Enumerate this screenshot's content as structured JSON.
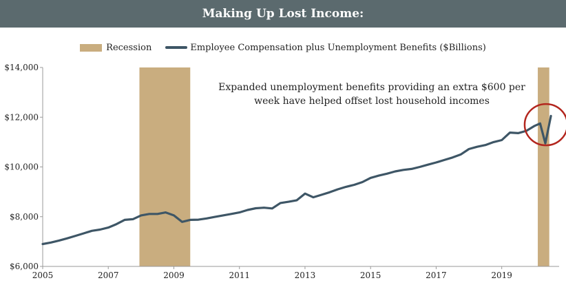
{
  "header": {
    "title": "Making Up Lost Income:"
  },
  "chart_data": {
    "type": "line",
    "title": "Making Up Lost Income:",
    "legend_position": "top-center",
    "legend": [
      {
        "label": "Recession",
        "kind": "area",
        "color": "#c9ad7f"
      },
      {
        "label": "Employee Compensation plus Unemployment Benefits ($Billions)",
        "kind": "line",
        "color": "#3e5666"
      }
    ],
    "xlim": [
      2005,
      2020.75
    ],
    "ylim": [
      6000,
      14000
    ],
    "x_ticks": [
      "2005",
      "2007",
      "2009",
      "2011",
      "2013",
      "2015",
      "2017",
      "2019"
    ],
    "x_tick_values": [
      2005,
      2007,
      2009,
      2011,
      2013,
      2015,
      2017,
      2019
    ],
    "y_ticks": [
      "$6,000",
      "$8,000",
      "$10,000",
      "$12,000",
      "$14,000"
    ],
    "y_tick_values": [
      6000,
      8000,
      10000,
      12000,
      14000
    ],
    "recessions": [
      {
        "start": 2007.95,
        "end": 2009.5
      },
      {
        "start": 2020.1,
        "end": 2020.45
      }
    ],
    "annotation": {
      "lines": [
        "Expanded unemployment benefits providing an extra $600 per",
        "week have helped offset lost household incomes"
      ],
      "circle_center": [
        2020.35,
        11700
      ]
    },
    "series": [
      {
        "name": "Employee Compensation plus Unemployment Benefits ($Billions)",
        "color": "#3e5666",
        "points": [
          [
            2005.0,
            6900
          ],
          [
            2005.25,
            6960
          ],
          [
            2005.5,
            7040
          ],
          [
            2005.75,
            7130
          ],
          [
            2006.0,
            7230
          ],
          [
            2006.25,
            7330
          ],
          [
            2006.5,
            7430
          ],
          [
            2006.75,
            7480
          ],
          [
            2007.0,
            7560
          ],
          [
            2007.25,
            7700
          ],
          [
            2007.5,
            7870
          ],
          [
            2007.75,
            7900
          ],
          [
            2008.0,
            8050
          ],
          [
            2008.25,
            8110
          ],
          [
            2008.5,
            8110
          ],
          [
            2008.75,
            8170
          ],
          [
            2009.0,
            8050
          ],
          [
            2009.25,
            7790
          ],
          [
            2009.5,
            7870
          ],
          [
            2009.75,
            7880
          ],
          [
            2010.0,
            7930
          ],
          [
            2010.25,
            7990
          ],
          [
            2010.5,
            8050
          ],
          [
            2010.75,
            8110
          ],
          [
            2011.0,
            8170
          ],
          [
            2011.25,
            8270
          ],
          [
            2011.5,
            8340
          ],
          [
            2011.75,
            8360
          ],
          [
            2012.0,
            8330
          ],
          [
            2012.25,
            8550
          ],
          [
            2012.5,
            8600
          ],
          [
            2012.75,
            8660
          ],
          [
            2013.0,
            8930
          ],
          [
            2013.25,
            8780
          ],
          [
            2013.5,
            8880
          ],
          [
            2013.75,
            8980
          ],
          [
            2014.0,
            9100
          ],
          [
            2014.25,
            9200
          ],
          [
            2014.5,
            9280
          ],
          [
            2014.75,
            9390
          ],
          [
            2015.0,
            9560
          ],
          [
            2015.25,
            9650
          ],
          [
            2015.5,
            9730
          ],
          [
            2015.75,
            9820
          ],
          [
            2016.0,
            9880
          ],
          [
            2016.25,
            9920
          ],
          [
            2016.5,
            10000
          ],
          [
            2016.75,
            10090
          ],
          [
            2017.0,
            10180
          ],
          [
            2017.25,
            10280
          ],
          [
            2017.5,
            10380
          ],
          [
            2017.75,
            10500
          ],
          [
            2018.0,
            10720
          ],
          [
            2018.25,
            10810
          ],
          [
            2018.5,
            10880
          ],
          [
            2018.75,
            11000
          ],
          [
            2019.0,
            11080
          ],
          [
            2019.25,
            11380
          ],
          [
            2019.5,
            11360
          ],
          [
            2019.75,
            11450
          ],
          [
            2020.0,
            11650
          ],
          [
            2020.17,
            11750
          ],
          [
            2020.33,
            10950
          ],
          [
            2020.5,
            12050
          ]
        ]
      }
    ]
  }
}
